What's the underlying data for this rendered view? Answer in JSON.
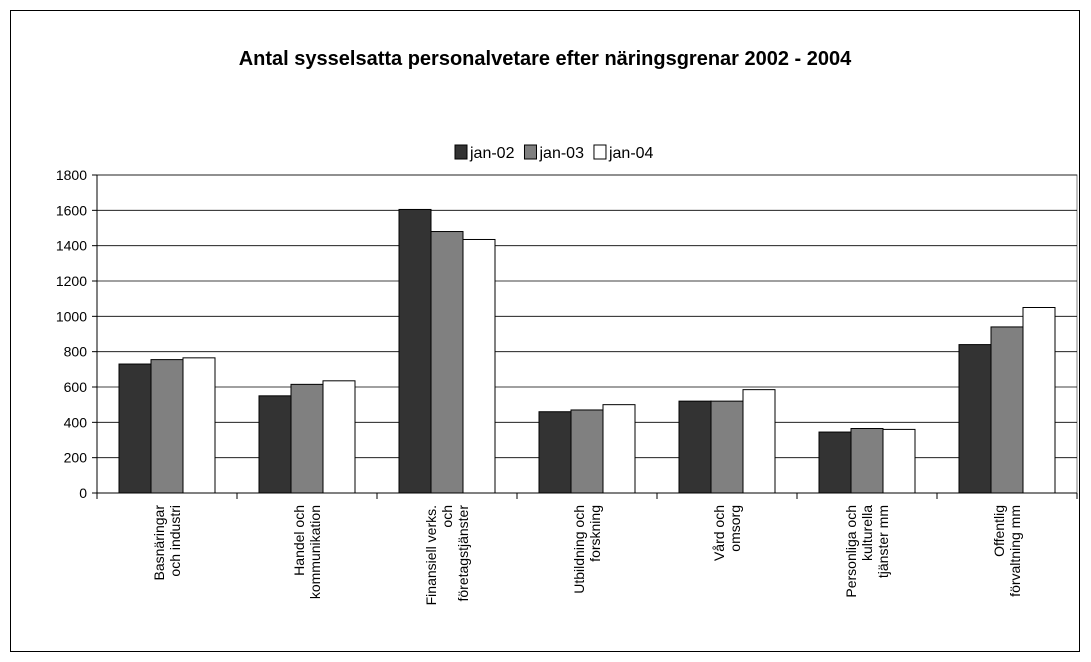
{
  "chart_data": {
    "type": "bar",
    "title": "Antal sysselsatta personalvetare efter näringsgrenar 2002 - 2004",
    "categories": [
      "Basnäringar\noch industri",
      "Handel och\nkommunikation",
      "Finansiell verks.\noch\nföretagstjänster",
      "Utbildning och\nforskning",
      "Vård och\nomsorg",
      "Personliga och\nkulturella\ntjänster mm",
      "Offentlig\nförvaltning mm"
    ],
    "series": [
      {
        "name": "jan-02",
        "color": "#333333",
        "values": [
          730,
          550,
          1605,
          460,
          520,
          345,
          840
        ]
      },
      {
        "name": "jan-03",
        "color": "#808080",
        "values": [
          755,
          615,
          1480,
          470,
          520,
          365,
          940
        ]
      },
      {
        "name": "jan-04",
        "color": "#ffffff",
        "values": [
          765,
          635,
          1435,
          500,
          585,
          360,
          1050
        ]
      }
    ],
    "ylim": [
      0,
      1800
    ],
    "yticks": [
      0,
      200,
      400,
      600,
      800,
      1000,
      1200,
      1400,
      1600,
      1800
    ],
    "grid": true,
    "legend": "top"
  }
}
